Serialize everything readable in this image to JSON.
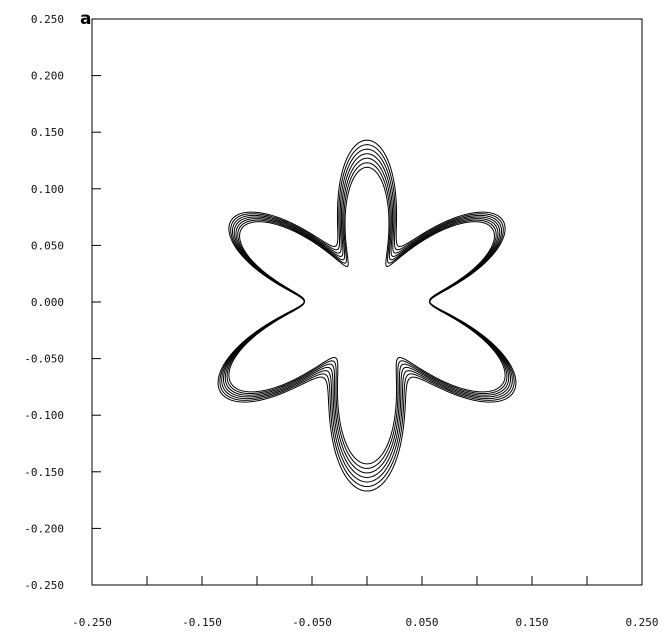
{
  "figure": {
    "panel_label": "a"
  },
  "chart_data": {
    "type": "line",
    "title": "",
    "xlabel": "",
    "ylabel": "",
    "xlim": [
      -0.25,
      0.25
    ],
    "ylim": [
      -0.25,
      0.25
    ],
    "grid": false,
    "x_ticks": [
      -0.25,
      -0.2,
      -0.15,
      -0.1,
      -0.05,
      0.0,
      0.05,
      0.1,
      0.15,
      0.2,
      0.25
    ],
    "x_tick_labels": [
      "-0.250",
      "",
      "-0.150",
      "",
      "-0.050",
      "",
      "0.050",
      "",
      "0.150",
      "",
      "0.250"
    ],
    "y_ticks": [
      0.25,
      0.2,
      0.15,
      0.1,
      0.05,
      0.0,
      -0.05,
      -0.1,
      -0.15,
      -0.2,
      -0.25
    ],
    "y_tick_labels": [
      "0.250",
      "0.200",
      "0.150",
      "0.100",
      "0.050",
      "0.000",
      "-0.050",
      "-0.100",
      "-0.150",
      "-0.200",
      "-0.250"
    ],
    "curves": {
      "shape": "six-lobed star, polar form r(theta) = R0 + A*cos(6*(theta - phase)) + shift*cos(theta - shift_angle)",
      "count": 7,
      "lobes": 6,
      "base_radius": 0.1,
      "lobe_amplitude": 0.043,
      "lobe_phase_deg": 30,
      "shift_angle_deg": 270,
      "shifts": [
        0.0,
        0.004,
        0.008,
        0.012,
        0.016,
        0.02,
        0.024
      ],
      "color": "#000000"
    }
  }
}
